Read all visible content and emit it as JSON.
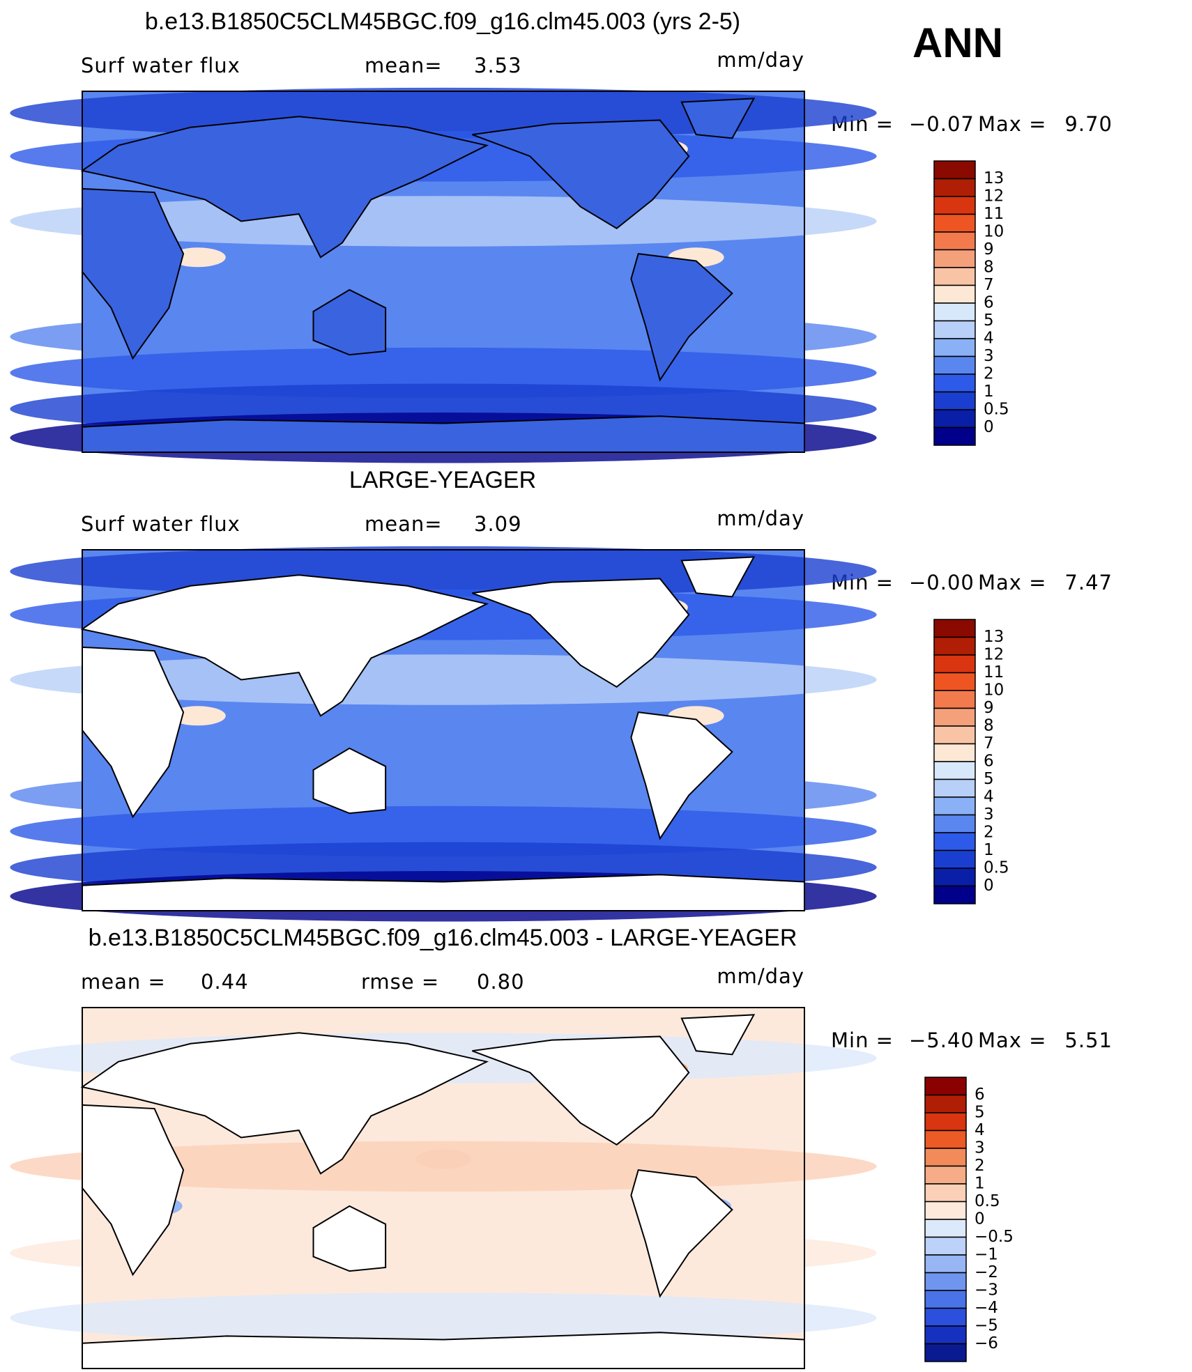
{
  "header": {
    "season": "ANN"
  },
  "panels": [
    {
      "title": "b.e13.B1850C5CLM45BGC.f09_g16.clm45.003 (yrs 2-5)",
      "left_label": "Surf water flux",
      "stats": [
        {
          "label": "mean=",
          "value": "3.53"
        }
      ],
      "units": "mm/day",
      "min_label": "Min =",
      "min_value": "−0.07",
      "max_label": "Max =",
      "max_value": "9.70",
      "land": "#3a63e0",
      "colorbar": {
        "labels": [
          "13",
          "12",
          "11",
          "10",
          "9",
          "8",
          "7",
          "6",
          "5",
          "4",
          "3",
          "2",
          "1",
          "0.5",
          "0"
        ],
        "colors": [
          "#8b0a00",
          "#b01e05",
          "#d83510",
          "#ee5522",
          "#f27a4d",
          "#f4a07a",
          "#f9c4a6",
          "#fde8d6",
          "#d8e8fb",
          "#b8cff8",
          "#8ab0f5",
          "#5a86f0",
          "#2d5ae8",
          "#1a3fd0",
          "#0a1fa8",
          "#00008b"
        ]
      }
    },
    {
      "title": "LARGE-YEAGER",
      "left_label": "Surf water flux",
      "stats": [
        {
          "label": "mean=",
          "value": "3.09"
        }
      ],
      "units": "mm/day",
      "min_label": "Min =",
      "min_value": "−0.00",
      "max_label": "Max =",
      "max_value": "7.47",
      "land": "#ffffff",
      "colorbar": {
        "labels": [
          "13",
          "12",
          "11",
          "10",
          "9",
          "8",
          "7",
          "6",
          "5",
          "4",
          "3",
          "2",
          "1",
          "0.5",
          "0"
        ],
        "colors": [
          "#8b0a00",
          "#b01e05",
          "#d83510",
          "#ee5522",
          "#f27a4d",
          "#f4a07a",
          "#f9c4a6",
          "#fde8d6",
          "#d8e8fb",
          "#b8cff8",
          "#8ab0f5",
          "#5a86f0",
          "#2d5ae8",
          "#1a3fd0",
          "#0a1fa8",
          "#00008b"
        ]
      }
    },
    {
      "title": "b.e13.B1850C5CLM45BGC.f09_g16.clm45.003 - LARGE-YEAGER",
      "stats": [
        {
          "label": "mean =",
          "value": "0.44"
        },
        {
          "label": "rmse =",
          "value": "0.80"
        }
      ],
      "units": "mm/day",
      "min_label": "Min =",
      "min_value": "−5.40",
      "max_label": "Max =",
      "max_value": "5.51",
      "land": "#ffffff",
      "colorbar": {
        "labels": [
          "6",
          "5",
          "4",
          "3",
          "2",
          "1",
          "0.5",
          "0",
          "−0.5",
          "−1",
          "−2",
          "−3",
          "−4",
          "−5",
          "−6"
        ],
        "colors": [
          "#8b0000",
          "#b01e05",
          "#d83510",
          "#ec5a25",
          "#f28a5a",
          "#f6ad87",
          "#fbd0b8",
          "#fde9dc",
          "#dce9fb",
          "#bcd2f8",
          "#97b6f3",
          "#6f95ee",
          "#4a73e8",
          "#2d4fdd",
          "#1630c0",
          "#0a1a90"
        ]
      }
    }
  ]
}
